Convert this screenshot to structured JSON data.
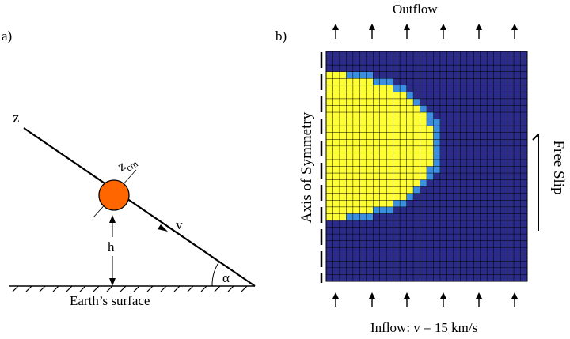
{
  "panel_a": {
    "label": "a)",
    "axis_label": "z",
    "cm_label_main": "z",
    "cm_label_sub": "cm",
    "velocity_label": "v",
    "height_label": "h",
    "angle_label": "α",
    "surface_label": "Earth’s surface"
  },
  "panel_b": {
    "label": "b)",
    "top_label": "Outflow",
    "bottom_label": "Inflow: v = 15 km/s",
    "left_label": "Axis of Symmetry",
    "right_label": "Free Slip"
  },
  "colors": {
    "bolide": "#ff6600",
    "grid_background": "#2b2b88",
    "body": "#ffff33",
    "body_edge": "#3a8fe0",
    "grid_lines": "#000000"
  }
}
